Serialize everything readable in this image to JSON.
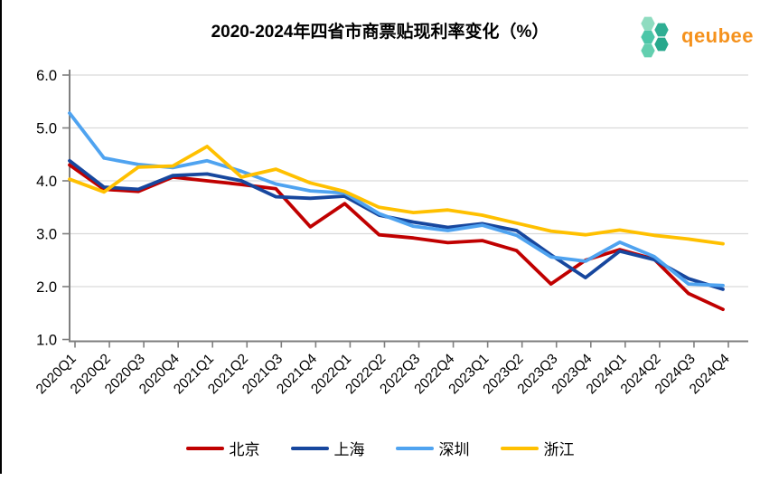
{
  "title": "2020-2024年四省市商票贴现利率变化（%）",
  "logo": {
    "text": "qeubee",
    "text_color": "#F5921D",
    "hex_colors": [
      "#8FDCC0",
      "#2FAE93",
      "#4CC6A8",
      "#27A88C",
      "#63CFAF"
    ]
  },
  "axis": {
    "color": "#7F7F7F",
    "grid_color": "#D9D9D9",
    "label_color": "#000000",
    "ytick_labels": [
      "6.0",
      "5.0",
      "4.0",
      "3.0",
      "2.0",
      "1.0"
    ]
  },
  "chart_data": {
    "type": "line",
    "title": "2020-2024年四省市商票贴现利率变化（%）",
    "xlabel": "",
    "ylabel": "",
    "ylim": [
      1.0,
      6.0
    ],
    "ytick_step": 1.0,
    "grid": "horizontal",
    "legend_position": "bottom",
    "categories": [
      "2020Q1",
      "2020Q2",
      "2020Q3",
      "2020Q4",
      "2021Q1",
      "2021Q2",
      "2021Q3",
      "2021Q4",
      "2022Q1",
      "2022Q2",
      "2022Q3",
      "2022Q4",
      "2023Q1",
      "2023Q2",
      "2023Q3",
      "2023Q4",
      "2024Q1",
      "2024Q2",
      "2024Q3",
      "2024Q4"
    ],
    "series": [
      {
        "name": "北京",
        "color": "#C00000",
        "values": [
          4.3,
          3.84,
          3.8,
          4.07,
          4.0,
          3.93,
          3.85,
          3.13,
          3.57,
          2.98,
          2.92,
          2.83,
          2.87,
          2.68,
          2.05,
          2.5,
          2.7,
          2.52,
          1.87,
          1.57
        ]
      },
      {
        "name": "上海",
        "color": "#17479E",
        "values": [
          4.38,
          3.88,
          3.84,
          4.1,
          4.13,
          4.0,
          3.7,
          3.67,
          3.71,
          3.35,
          3.22,
          3.12,
          3.19,
          3.06,
          2.6,
          2.17,
          2.67,
          2.51,
          2.15,
          1.95
        ]
      },
      {
        "name": "深圳",
        "color": "#4FA3F0",
        "values": [
          5.28,
          4.43,
          4.31,
          4.25,
          4.38,
          4.18,
          3.94,
          3.81,
          3.77,
          3.38,
          3.14,
          3.06,
          3.16,
          2.97,
          2.56,
          2.48,
          2.84,
          2.57,
          2.05,
          2.02
        ]
      },
      {
        "name": "浙江",
        "color": "#FFC000",
        "values": [
          4.03,
          3.79,
          4.26,
          4.28,
          4.65,
          4.07,
          4.22,
          3.96,
          3.8,
          3.5,
          3.4,
          3.45,
          3.35,
          3.2,
          3.05,
          2.98,
          3.07,
          2.97,
          2.9,
          2.81
        ]
      }
    ]
  }
}
